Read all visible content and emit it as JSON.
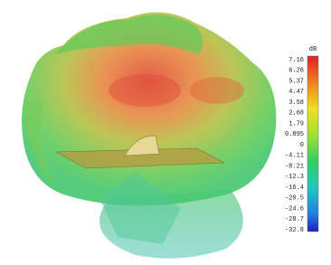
{
  "colorbar": {
    "unit": "dB",
    "labels": [
      "7.16",
      "6.26",
      "5.37",
      "4.47",
      "3.58",
      "2.68",
      "1.79",
      "0.895",
      "0",
      "-4.11",
      "-8.21",
      "-12.3",
      "-16.4",
      "-20.5",
      "-24.6",
      "-28.7",
      "-32.8"
    ]
  }
}
